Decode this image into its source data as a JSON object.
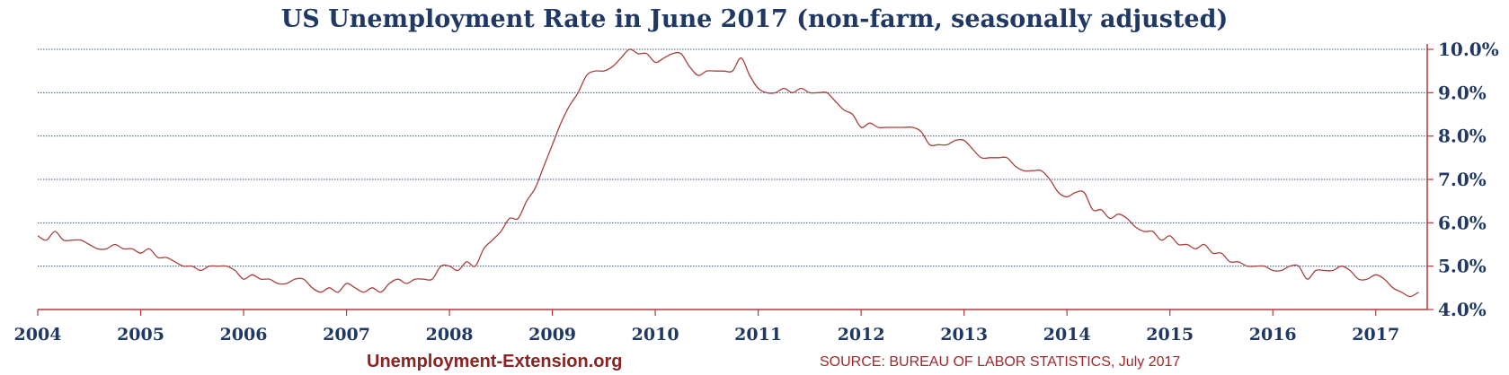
{
  "chart_data": {
    "type": "line",
    "title": "US Unemployment Rate in June 2017 (non-farm, seasonally adjusted)",
    "xlabel": "",
    "ylabel": "",
    "ylim": [
      4.0,
      10.0
    ],
    "xlim": [
      "2004-01",
      "2017-07"
    ],
    "y_axis_position": "right",
    "grid": "horizontal-dotted",
    "line_color": "#a9403c",
    "axis_color": "#b03a3a",
    "yticks": [
      "4.0%",
      "5.0%",
      "6.0%",
      "7.0%",
      "8.0%",
      "9.0%",
      "10.0%"
    ],
    "xticks": [
      "2004",
      "2005",
      "2006",
      "2007",
      "2008",
      "2009",
      "2010",
      "2011",
      "2012",
      "2013",
      "2014",
      "2015",
      "2016",
      "2017"
    ],
    "series": [
      {
        "x": [
          "2004-01",
          "2004-02",
          "2004-03",
          "2004-04",
          "2004-05",
          "2004-06",
          "2004-07",
          "2004-08",
          "2004-09",
          "2004-10",
          "2004-11",
          "2004-12",
          "2005-01",
          "2005-02",
          "2005-03",
          "2005-04",
          "2005-05",
          "2005-06",
          "2005-07",
          "2005-08",
          "2005-09",
          "2005-10",
          "2005-11",
          "2005-12",
          "2006-01",
          "2006-02",
          "2006-03",
          "2006-04",
          "2006-05",
          "2006-06",
          "2006-07",
          "2006-08",
          "2006-09",
          "2006-10",
          "2006-11",
          "2006-12",
          "2007-01",
          "2007-02",
          "2007-03",
          "2007-04",
          "2007-05",
          "2007-06",
          "2007-07",
          "2007-08",
          "2007-09",
          "2007-10",
          "2007-11",
          "2007-12",
          "2008-01",
          "2008-02",
          "2008-03",
          "2008-04",
          "2008-05",
          "2008-06",
          "2008-07",
          "2008-08",
          "2008-09",
          "2008-10",
          "2008-11",
          "2008-12",
          "2009-01",
          "2009-02",
          "2009-03",
          "2009-04",
          "2009-05",
          "2009-06",
          "2009-07",
          "2009-08",
          "2009-09",
          "2009-10",
          "2009-11",
          "2009-12",
          "2010-01",
          "2010-02",
          "2010-03",
          "2010-04",
          "2010-05",
          "2010-06",
          "2010-07",
          "2010-08",
          "2010-09",
          "2010-10",
          "2010-11",
          "2010-12",
          "2011-01",
          "2011-02",
          "2011-03",
          "2011-04",
          "2011-05",
          "2011-06",
          "2011-07",
          "2011-08",
          "2011-09",
          "2011-10",
          "2011-11",
          "2011-12",
          "2012-01",
          "2012-02",
          "2012-03",
          "2012-04",
          "2012-05",
          "2012-06",
          "2012-07",
          "2012-08",
          "2012-09",
          "2012-10",
          "2012-11",
          "2012-12",
          "2013-01",
          "2013-02",
          "2013-03",
          "2013-04",
          "2013-05",
          "2013-06",
          "2013-07",
          "2013-08",
          "2013-09",
          "2013-10",
          "2013-11",
          "2013-12",
          "2014-01",
          "2014-02",
          "2014-03",
          "2014-04",
          "2014-05",
          "2014-06",
          "2014-07",
          "2014-08",
          "2014-09",
          "2014-10",
          "2014-11",
          "2014-12",
          "2015-01",
          "2015-02",
          "2015-03",
          "2015-04",
          "2015-05",
          "2015-06",
          "2015-07",
          "2015-08",
          "2015-09",
          "2015-10",
          "2015-11",
          "2015-12",
          "2016-01",
          "2016-02",
          "2016-03",
          "2016-04",
          "2016-05",
          "2016-06",
          "2016-07",
          "2016-08",
          "2016-09",
          "2016-10",
          "2016-11",
          "2016-12",
          "2017-01",
          "2017-02",
          "2017-03",
          "2017-04",
          "2017-05",
          "2017-06"
        ],
        "values": [
          5.7,
          5.6,
          5.8,
          5.6,
          5.6,
          5.6,
          5.5,
          5.4,
          5.4,
          5.5,
          5.4,
          5.4,
          5.3,
          5.4,
          5.2,
          5.2,
          5.1,
          5.0,
          5.0,
          4.9,
          5.0,
          5.0,
          5.0,
          4.9,
          4.7,
          4.8,
          4.7,
          4.7,
          4.6,
          4.6,
          4.7,
          4.7,
          4.5,
          4.4,
          4.5,
          4.4,
          4.6,
          4.5,
          4.4,
          4.5,
          4.4,
          4.6,
          4.7,
          4.6,
          4.7,
          4.7,
          4.7,
          5.0,
          5.0,
          4.9,
          5.1,
          5.0,
          5.4,
          5.6,
          5.8,
          6.1,
          6.1,
          6.5,
          6.8,
          7.3,
          7.8,
          8.3,
          8.7,
          9.0,
          9.4,
          9.5,
          9.5,
          9.6,
          9.8,
          10.0,
          9.9,
          9.9,
          9.7,
          9.8,
          9.9,
          9.9,
          9.6,
          9.4,
          9.5,
          9.5,
          9.5,
          9.5,
          9.8,
          9.4,
          9.1,
          9.0,
          9.0,
          9.1,
          9.0,
          9.1,
          9.0,
          9.0,
          9.0,
          8.8,
          8.6,
          8.5,
          8.2,
          8.3,
          8.2,
          8.2,
          8.2,
          8.2,
          8.2,
          8.1,
          7.8,
          7.8,
          7.8,
          7.9,
          7.9,
          7.7,
          7.5,
          7.5,
          7.5,
          7.5,
          7.3,
          7.2,
          7.2,
          7.2,
          7.0,
          6.7,
          6.6,
          6.7,
          6.7,
          6.3,
          6.3,
          6.1,
          6.2,
          6.1,
          5.9,
          5.8,
          5.8,
          5.6,
          5.7,
          5.5,
          5.5,
          5.4,
          5.5,
          5.3,
          5.3,
          5.1,
          5.1,
          5.0,
          5.0,
          5.0,
          4.9,
          4.9,
          5.0,
          5.0,
          4.7,
          4.9,
          4.9,
          4.9,
          5.0,
          4.9,
          4.7,
          4.7,
          4.8,
          4.7,
          4.5,
          4.4,
          4.3,
          4.4
        ]
      }
    ]
  },
  "footer": {
    "site": "Unemployment-Extension.org",
    "source": "SOURCE: BUREAU OF LABOR STATISTICS, July 2017"
  }
}
